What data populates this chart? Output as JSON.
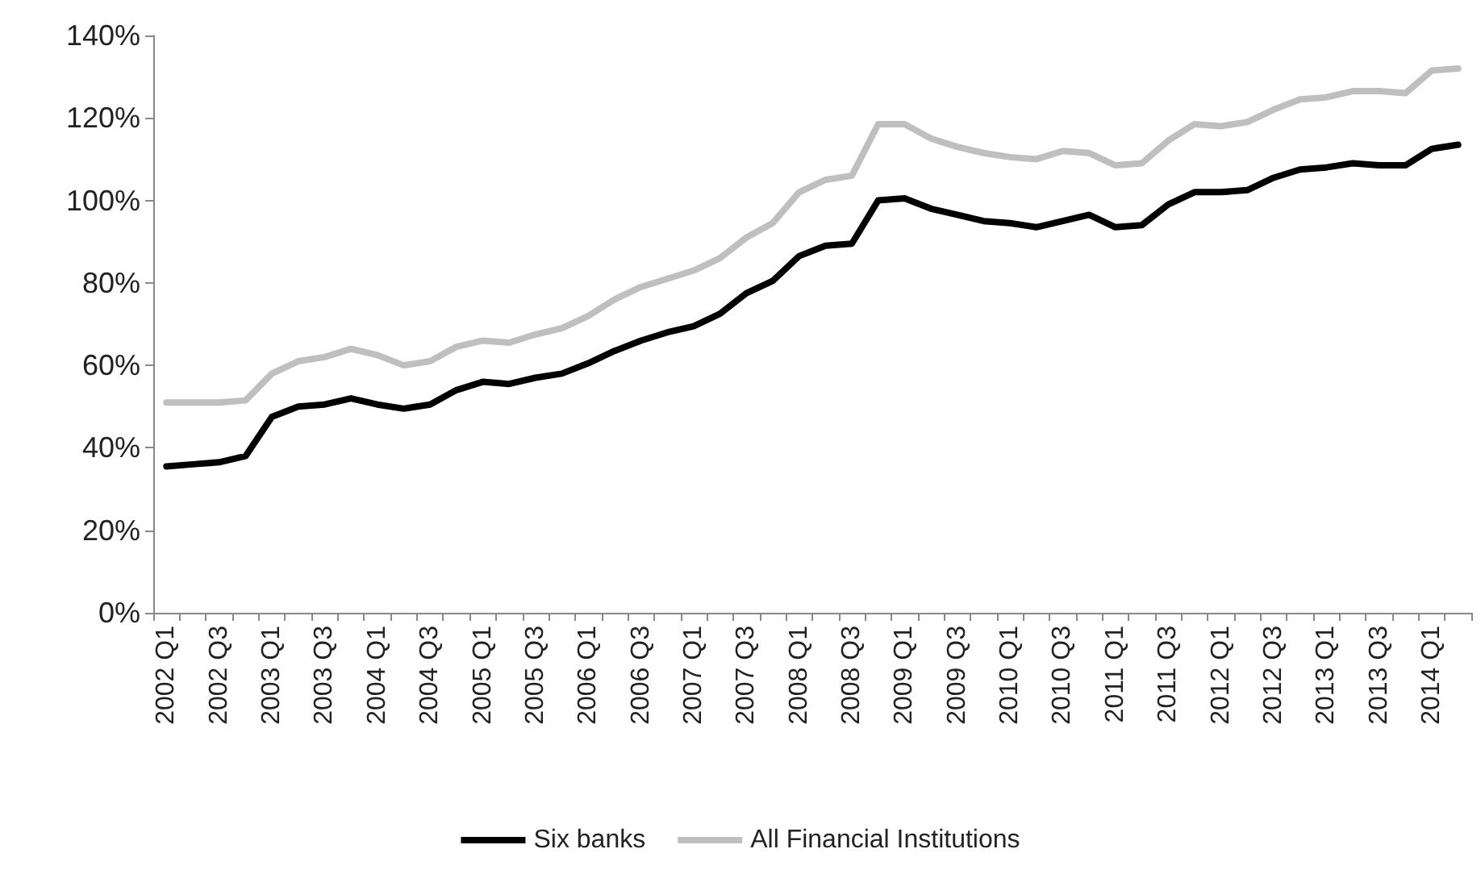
{
  "chart_data": {
    "type": "line",
    "categories": [
      "2002 Q1",
      null,
      "2002 Q3",
      null,
      "2003 Q1",
      null,
      "2003 Q3",
      null,
      "2004 Q1",
      null,
      "2004 Q3",
      null,
      "2005 Q1",
      null,
      "2005 Q3",
      null,
      "2006 Q1",
      null,
      "2006 Q3",
      null,
      "2007 Q1",
      null,
      "2007 Q3",
      null,
      "2008 Q1",
      null,
      "2008 Q3",
      null,
      "2009 Q1",
      null,
      "2009 Q3",
      null,
      "2010 Q1",
      null,
      "2010 Q3",
      null,
      "2011 Q1",
      null,
      "2011 Q3",
      null,
      "2012 Q1",
      null,
      "2012 Q3",
      null,
      "2013 Q1",
      null,
      "2013 Q3",
      null,
      "2014 Q1",
      null
    ],
    "series": [
      {
        "name": "Six banks",
        "color": "#000000",
        "values": [
          35.5,
          36,
          36.5,
          38,
          47.5,
          50,
          50.5,
          52,
          50.5,
          49.5,
          50.5,
          54,
          56,
          55.5,
          57,
          58,
          60.5,
          63.5,
          66,
          68,
          69.5,
          72.5,
          77.5,
          80.5,
          86.5,
          89,
          89.5,
          100,
          100.5,
          98,
          96.5,
          95,
          94.5,
          93.5,
          95,
          96.5,
          93.5,
          94,
          99,
          102,
          102,
          102.5,
          105.5,
          107.5,
          108,
          109,
          108.5,
          108.5,
          112.5,
          113.5
        ]
      },
      {
        "name": "All Financial Institutions",
        "color": "#bfbfbf",
        "values": [
          51,
          51,
          51,
          51.5,
          58,
          61,
          62,
          64,
          62.5,
          60,
          61,
          64.5,
          66,
          65.5,
          67.5,
          69,
          72,
          76,
          79,
          81,
          83,
          86,
          91,
          94.5,
          102,
          105,
          106,
          118.5,
          118.5,
          115,
          113,
          111.5,
          110.5,
          110,
          112,
          111.5,
          108.5,
          109,
          114.5,
          118.5,
          118,
          119,
          122,
          124.5,
          125,
          126.5,
          126.5,
          126,
          131.5,
          132
        ]
      }
    ],
    "ylim": [
      0,
      140
    ],
    "yticks": [
      {
        "value": 0,
        "label": "0%"
      },
      {
        "value": 20,
        "label": "20%"
      },
      {
        "value": 40,
        "label": "40%"
      },
      {
        "value": 60,
        "label": "60%"
      },
      {
        "value": 80,
        "label": "80%"
      },
      {
        "value": 100,
        "label": "100%"
      },
      {
        "value": 120,
        "label": "120%"
      },
      {
        "value": 140,
        "label": "140%"
      }
    ],
    "grid": false,
    "legend": "bottom",
    "marker": "none",
    "line_style": "solid"
  }
}
